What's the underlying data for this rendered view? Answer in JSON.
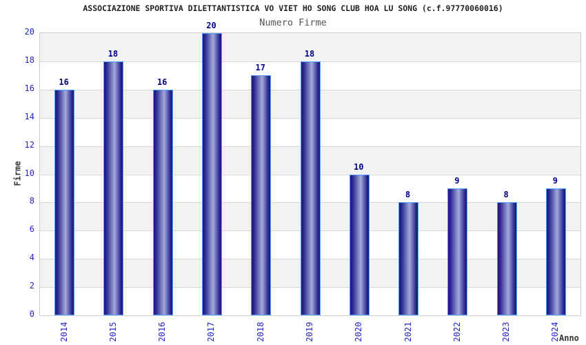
{
  "chart_data": {
    "type": "bar",
    "title": "ASSOCIAZIONE SPORTIVA DILETTANTISTICA VO VIET HO SONG CLUB HOA LU SONG (c.f.97770060016)",
    "subtitle": "Numero Firme",
    "xlabel": "Anno",
    "ylabel": "Firme",
    "categories": [
      "2014",
      "2015",
      "2016",
      "2017",
      "2018",
      "2019",
      "2020",
      "2021",
      "2022",
      "2023",
      "2024"
    ],
    "values": [
      16,
      18,
      16,
      20,
      17,
      18,
      10,
      8,
      9,
      8,
      9
    ],
    "ylim": [
      0,
      20
    ],
    "ytick_step": 2,
    "yticks": [
      0,
      2,
      4,
      6,
      8,
      10,
      12,
      14,
      16,
      18,
      20
    ],
    "grid": "horizontal-bands",
    "legend": "none",
    "colors": {
      "tick_label": "#2323cc",
      "value_label": "#00008b",
      "title": "#222222",
      "subtitle": "#555555",
      "axis_title": "#333333",
      "band_gray": "#f2f2f2",
      "gridline": "#d6d6d6",
      "plot_border": "#cccccc",
      "bar_border": "#4da3ff",
      "bar_edge_dark": "#1a1a78",
      "bar_body": "#27278e",
      "bar_highlight": "#a2aadc"
    }
  }
}
